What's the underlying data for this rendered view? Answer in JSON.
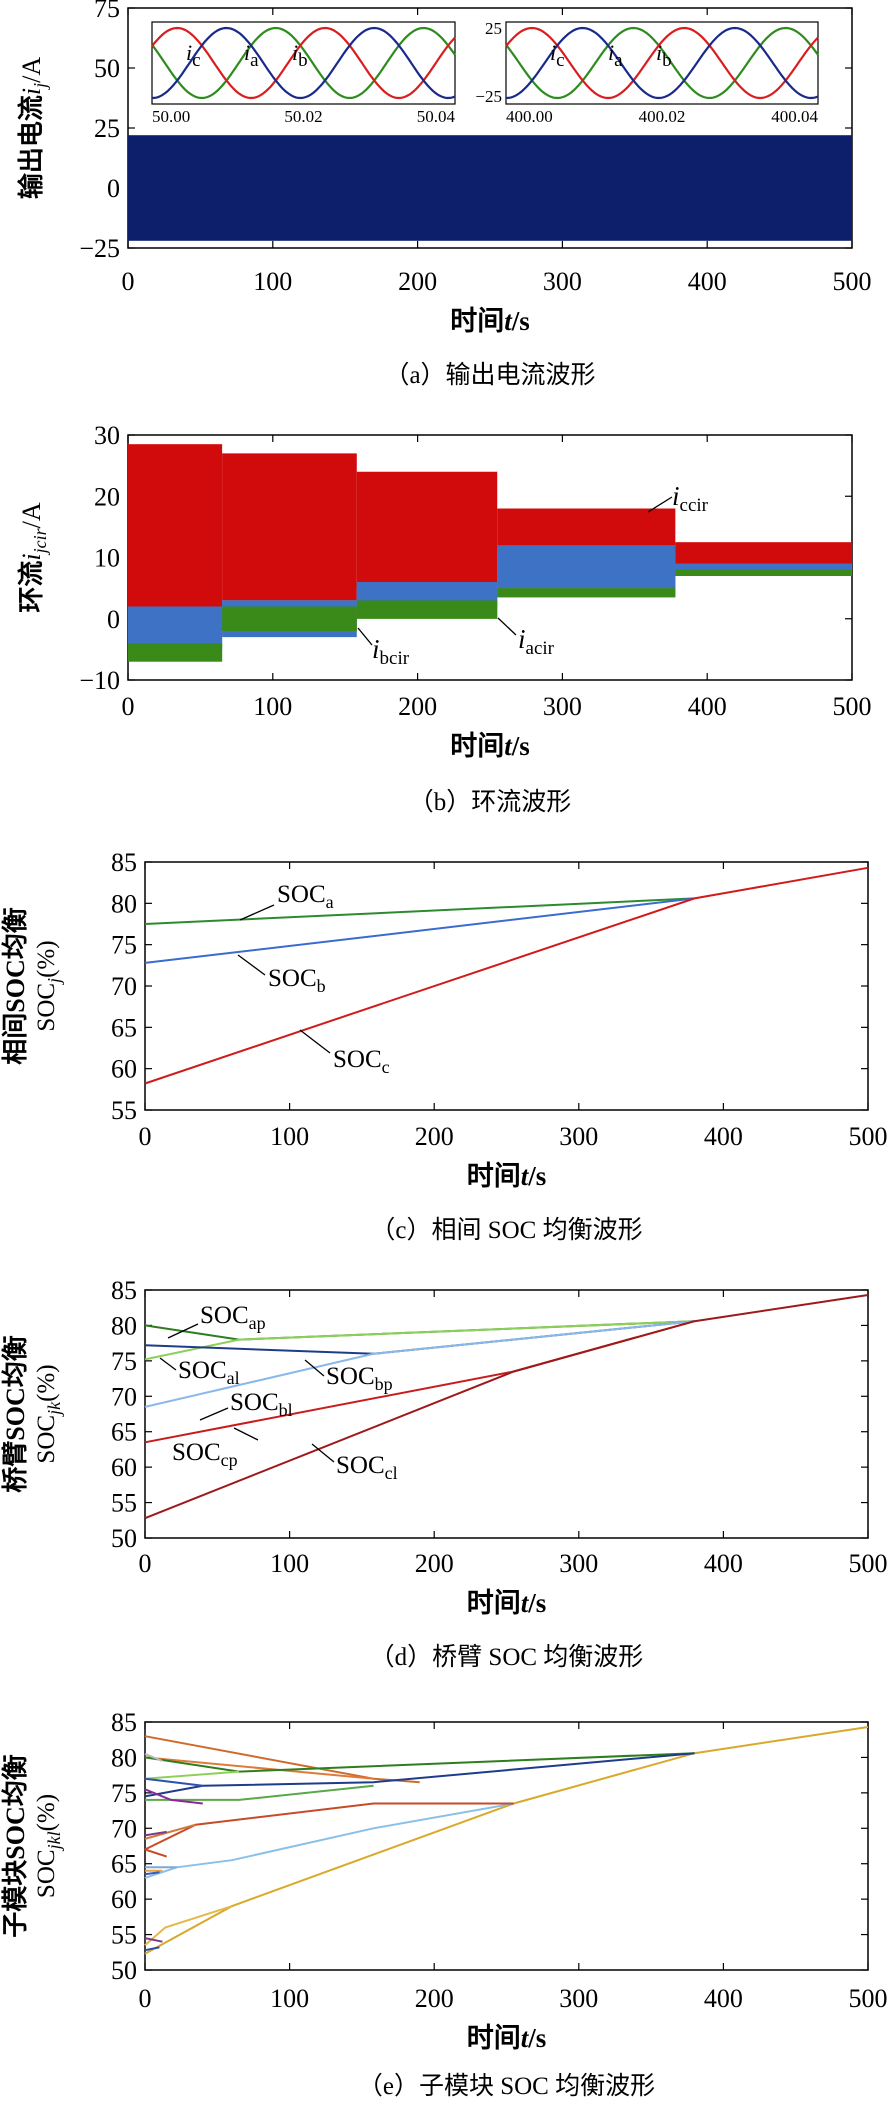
{
  "chart_data": [
    {
      "id": "a",
      "type": "line",
      "caption": "（a）输出电流波形",
      "xlabel": "时间t/s",
      "ylabel": "输出电流i_j/A",
      "xlim": [
        0,
        500
      ],
      "ylim": [
        -25,
        75
      ],
      "xticks": [
        0,
        100,
        200,
        300,
        400,
        500
      ],
      "yticks": [
        -25,
        0,
        25,
        50,
        75
      ],
      "band": {
        "x": [
          0,
          500
        ],
        "y": [
          -22,
          22
        ],
        "color": "#0d1f6b"
      },
      "series_labels": [
        "i_c",
        "i_a",
        "i_b"
      ],
      "colors": {
        "a": "#d81e1e",
        "b": "#1a2a8a",
        "c": "#2e8b1e"
      },
      "insets": [
        {
          "xticks": [
            "50.00",
            "50.02",
            "50.04"
          ],
          "yticks": []
        },
        {
          "xticks": [
            "400.00",
            "400.02",
            "400.04"
          ],
          "yticks": [
            "25",
            "−25"
          ]
        }
      ]
    },
    {
      "id": "b",
      "type": "area",
      "caption": "（b）环流波形",
      "xlabel": "时间t/s",
      "ylabel": "环流i_jcir/A",
      "xlim": [
        0,
        500
      ],
      "ylim": [
        -10,
        30
      ],
      "xticks": [
        0,
        100,
        200,
        300,
        400,
        500
      ],
      "yticks": [
        -10,
        0,
        10,
        20,
        30
      ],
      "series": [
        {
          "name": "i_acir",
          "color": "#3a8a1a",
          "segments": [
            [
              0,
              65,
              -7,
              -4
            ],
            [
              65,
              158,
              -2,
              2
            ],
            [
              158,
              255,
              0,
              3
            ],
            [
              255,
              378,
              3.5,
              5
            ],
            [
              378,
              500,
              7,
              8
            ]
          ]
        },
        {
          "name": "i_bcir",
          "color": "#3e72c4",
          "segments": [
            [
              0,
              65,
              -5,
              2
            ],
            [
              65,
              158,
              -3,
              3
            ],
            [
              158,
              255,
              2,
              6
            ],
            [
              255,
              378,
              5,
              12
            ],
            [
              378,
              500,
              7,
              9
            ]
          ]
        },
        {
          "name": "i_ccir",
          "color": "#d10b0b",
          "segments": [
            [
              0,
              65,
              2,
              28.5
            ],
            [
              65,
              158,
              3,
              27
            ],
            [
              158,
              255,
              5,
              24
            ],
            [
              255,
              378,
              11,
              18
            ],
            [
              378,
              500,
              7,
              12.5
            ]
          ]
        }
      ],
      "annotations": [
        "i_ccir",
        "i_bcir",
        "i_acir"
      ]
    },
    {
      "id": "c",
      "type": "line",
      "caption": "（c）相间 SOC 均衡波形",
      "xlabel": "时间t/s",
      "ylabel": [
        "相间SOC均衡",
        "SOC_j(%)"
      ],
      "xlim": [
        0,
        500
      ],
      "ylim": [
        55,
        85
      ],
      "xticks": [
        0,
        100,
        200,
        300,
        400,
        500
      ],
      "yticks": [
        55,
        60,
        65,
        70,
        75,
        80,
        85
      ],
      "series": [
        {
          "name": "SOC_a",
          "color": "#2d8a2d",
          "x": [
            0,
            380
          ],
          "y": [
            77.5,
            80.6
          ]
        },
        {
          "name": "SOC_b",
          "color": "#3c6bd0",
          "x": [
            0,
            380
          ],
          "y": [
            72.8,
            80.6
          ]
        },
        {
          "name": "SOC_c",
          "color": "#d01b1b",
          "x": [
            0,
            380,
            500
          ],
          "y": [
            58.2,
            80.6,
            84.3
          ]
        }
      ]
    },
    {
      "id": "d",
      "type": "line",
      "caption": "（d）桥臂 SOC 均衡波形",
      "xlabel": "时间t/s",
      "ylabel": [
        "桥臂SOC均衡",
        "SOC_jk(%)"
      ],
      "xlim": [
        0,
        500
      ],
      "ylim": [
        50,
        85
      ],
      "xticks": [
        0,
        100,
        200,
        300,
        400,
        500
      ],
      "yticks": [
        50,
        55,
        60,
        65,
        70,
        75,
        80,
        85
      ],
      "series": [
        {
          "name": "SOC_ap",
          "color": "#2e7d1e",
          "x": [
            0,
            65,
            380
          ],
          "y": [
            80,
            78,
            80.6
          ]
        },
        {
          "name": "SOC_al",
          "color": "#8ccf5a",
          "x": [
            0,
            65,
            380
          ],
          "y": [
            75.2,
            78,
            80.6
          ]
        },
        {
          "name": "SOC_bp",
          "color": "#1f3c8a",
          "x": [
            0,
            158,
            380
          ],
          "y": [
            77.2,
            76,
            80.6
          ]
        },
        {
          "name": "SOC_bl",
          "color": "#8ab8e8",
          "x": [
            0,
            158,
            380
          ],
          "y": [
            68.5,
            76,
            80.6
          ]
        },
        {
          "name": "SOC_cp",
          "color": "#c81c1c",
          "x": [
            0,
            255,
            380
          ],
          "y": [
            63.5,
            73.5,
            80.6
          ]
        },
        {
          "name": "SOC_cl",
          "color": "#9e1a1a",
          "x": [
            0,
            255,
            380,
            500
          ],
          "y": [
            52.8,
            73.5,
            80.6,
            84.3
          ]
        }
      ]
    },
    {
      "id": "e",
      "type": "line",
      "caption": "（e）子模块 SOC 均衡波形",
      "xlabel": "时间t/s",
      "ylabel": [
        "子模块SOC均衡",
        "SOC_jkl(%)"
      ],
      "xlim": [
        0,
        500
      ],
      "ylim": [
        50,
        85
      ],
      "xticks": [
        0,
        100,
        200,
        300,
        400,
        500
      ],
      "yticks": [
        50,
        55,
        60,
        65,
        70,
        75,
        80,
        85
      ],
      "series": [
        {
          "color": "#d9a92b",
          "x": [
            0,
            60,
            255,
            380,
            500
          ],
          "y": [
            52.3,
            59,
            73.5,
            80.6,
            84.3
          ]
        },
        {
          "color": "#e6b84a",
          "x": [
            0,
            14,
            60
          ],
          "y": [
            53.5,
            56,
            59
          ]
        },
        {
          "color": "#8ac0e8",
          "x": [
            0,
            22,
            60,
            158,
            255
          ],
          "y": [
            63,
            64.5,
            65.5,
            70,
            73.5
          ]
        },
        {
          "color": "#7aa8d8",
          "x": [
            0,
            22
          ],
          "y": [
            64.5,
            64.5
          ]
        },
        {
          "color": "#c84a28",
          "x": [
            0,
            35,
            158,
            255
          ],
          "y": [
            67,
            70.5,
            73.5,
            73.5
          ]
        },
        {
          "color": "#d07a3a",
          "x": [
            0,
            35
          ],
          "y": [
            68.5,
            70.5
          ]
        },
        {
          "color": "#d06a2a",
          "x": [
            0,
            158,
            190
          ],
          "y": [
            83,
            77,
            76.5
          ]
        },
        {
          "color": "#e07a3a",
          "x": [
            0,
            158
          ],
          "y": [
            80,
            77
          ]
        },
        {
          "color": "#2e7d1e",
          "x": [
            0,
            65,
            380
          ],
          "y": [
            80,
            78,
            80.6
          ]
        },
        {
          "color": "#8ccf5a",
          "x": [
            0,
            65
          ],
          "y": [
            77,
            78
          ]
        },
        {
          "color": "#5aa848",
          "x": [
            0,
            65,
            158
          ],
          "y": [
            74,
            74,
            76
          ]
        },
        {
          "color": "#1f3c8a",
          "x": [
            0,
            40,
            158,
            380
          ],
          "y": [
            74.5,
            76,
            76.5,
            80.6
          ]
        },
        {
          "color": "#3050b0",
          "x": [
            0,
            40
          ],
          "y": [
            77,
            76
          ]
        },
        {
          "color": "#8a2a9a",
          "x": [
            0,
            18,
            40
          ],
          "y": [
            75.5,
            74,
            73.5
          ]
        },
        {
          "color": "#b8b8b8",
          "x": [
            0,
            12
          ],
          "y": [
            80.5,
            79.5
          ]
        },
        {
          "color": "#7a3a8a",
          "x": [
            0,
            12
          ],
          "y": [
            54.5,
            54
          ]
        },
        {
          "color": "#2a4aa8",
          "x": [
            0,
            10
          ],
          "y": [
            52.8,
            53.2
          ]
        },
        {
          "color": "#e8a040",
          "x": [
            0,
            12
          ],
          "y": [
            64,
            64
          ]
        },
        {
          "color": "#3a5ab8",
          "x": [
            0,
            10
          ],
          "y": [
            63.5,
            63.8
          ]
        },
        {
          "color": "#c84a28",
          "x": [
            0,
            15
          ],
          "y": [
            67,
            66
          ]
        },
        {
          "color": "#7a3a8a",
          "x": [
            0,
            15
          ],
          "y": [
            69,
            69.5
          ]
        }
      ]
    }
  ]
}
